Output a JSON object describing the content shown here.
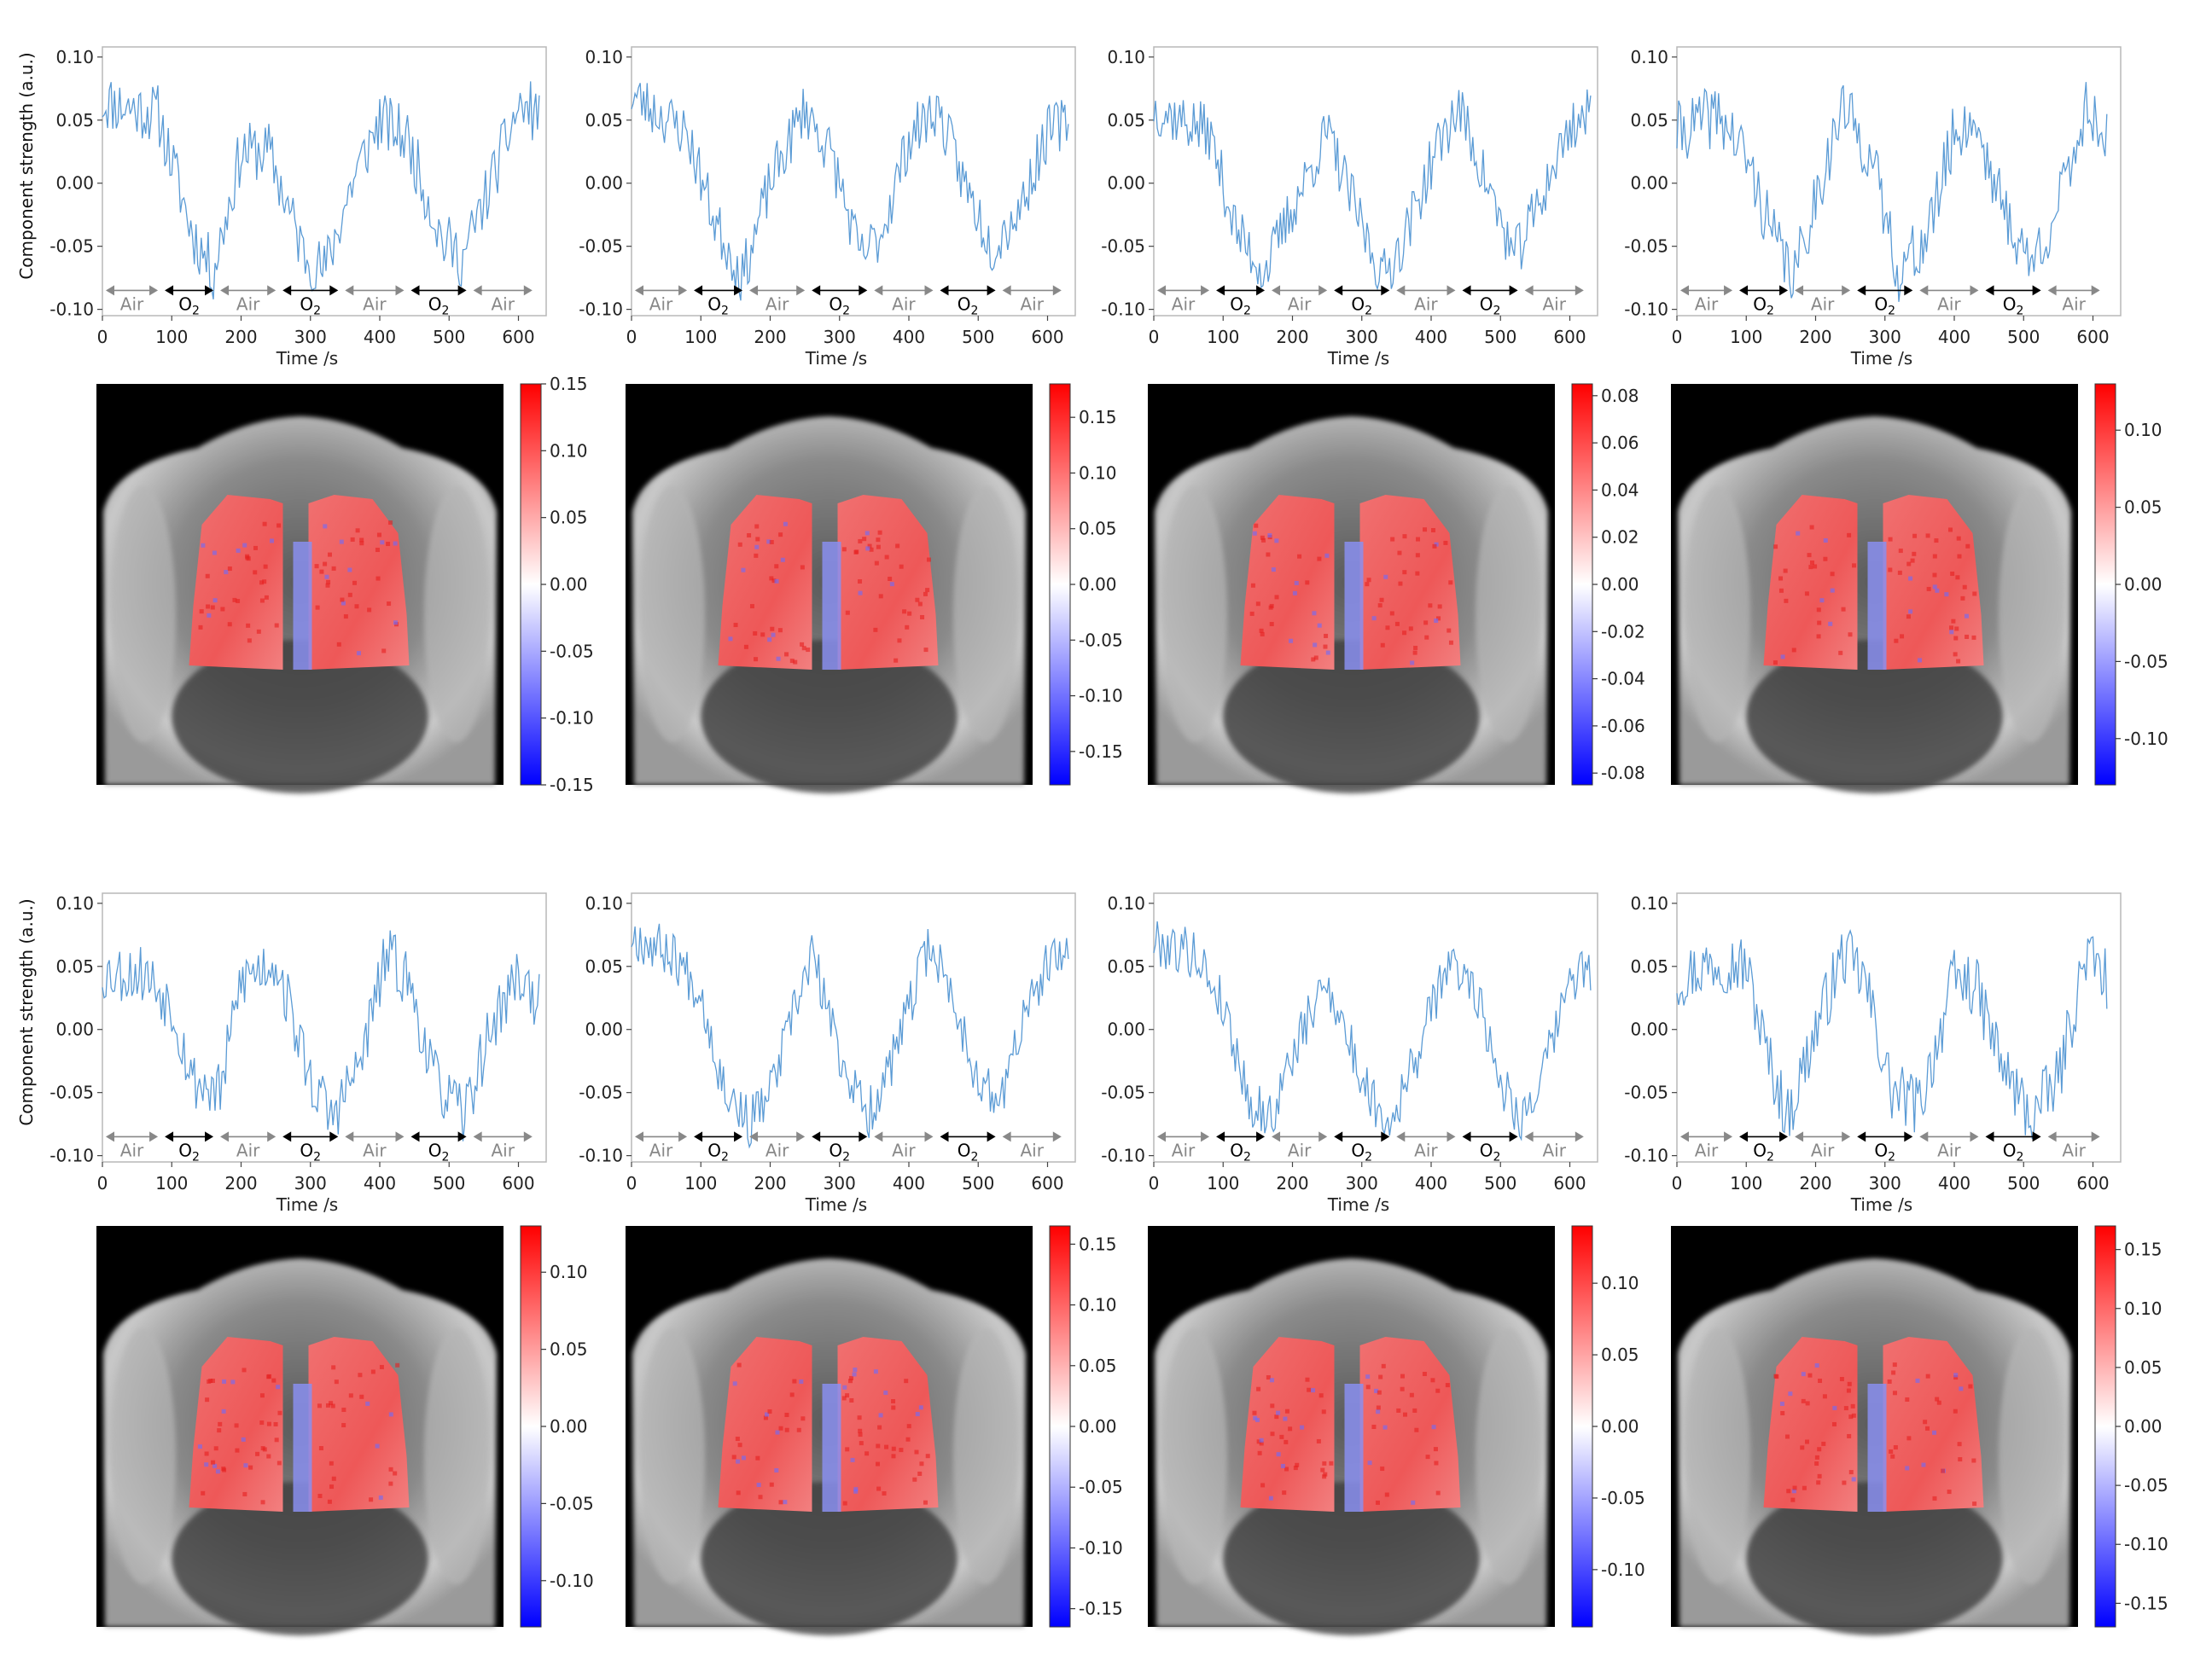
{
  "y_axis_label": "Component strength (a.u.)",
  "x_axis_label": "Time /s",
  "protocol_labels": [
    "Air",
    "O2",
    "Air",
    "O2",
    "Air",
    "O2",
    "Air"
  ],
  "x_ticks": [
    0,
    100,
    200,
    300,
    400,
    500,
    600
  ],
  "colors": {
    "trace": "#5b9bd5",
    "positive": "#ff0000",
    "negative": "#0000ff"
  },
  "chart_data": [
    {
      "type": "line",
      "panel": "row1-col1",
      "seed": 11,
      "ylim": [
        -0.1,
        0.1
      ],
      "yticks": [
        0.1,
        0.05,
        0.0,
        -0.05,
        -0.1
      ],
      "xlim": [
        0,
        630
      ],
      "noise": 0.024,
      "anchors": [
        [
          0,
          0.065
        ],
        [
          80,
          0.055
        ],
        [
          130,
          -0.04
        ],
        [
          160,
          -0.07
        ],
        [
          200,
          0.025
        ],
        [
          240,
          0.025
        ],
        [
          290,
          -0.055
        ],
        [
          320,
          -0.07
        ],
        [
          360,
          0.0
        ],
        [
          400,
          0.05
        ],
        [
          440,
          0.035
        ],
        [
          490,
          -0.045
        ],
        [
          520,
          -0.06
        ],
        [
          560,
          0.0
        ],
        [
          600,
          0.06
        ],
        [
          630,
          0.055
        ]
      ],
      "colorbar": {
        "range": [
          -0.15,
          0.15
        ],
        "ticks": [
          0.15,
          0.1,
          0.05,
          0.0,
          -0.05,
          -0.1,
          -0.15
        ]
      }
    },
    {
      "type": "line",
      "panel": "row1-col2",
      "seed": 23,
      "ylim": [
        -0.1,
        0.1
      ],
      "yticks": [
        0.1,
        0.05,
        0.0,
        -0.05,
        -0.1
      ],
      "xlim": [
        0,
        630
      ],
      "noise": 0.022,
      "anchors": [
        [
          0,
          0.07
        ],
        [
          80,
          0.04
        ],
        [
          120,
          -0.03
        ],
        [
          160,
          -0.075
        ],
        [
          200,
          0.0
        ],
        [
          250,
          0.06
        ],
        [
          290,
          0.02
        ],
        [
          330,
          -0.06
        ],
        [
          360,
          -0.04
        ],
        [
          400,
          0.035
        ],
        [
          440,
          0.06
        ],
        [
          480,
          0.0
        ],
        [
          520,
          -0.05
        ],
        [
          560,
          -0.02
        ],
        [
          600,
          0.04
        ],
        [
          630,
          0.05
        ]
      ],
      "colorbar": {
        "range": [
          -0.18,
          0.18
        ],
        "ticks": [
          0.15,
          0.1,
          0.05,
          0.0,
          -0.05,
          -0.1,
          -0.15
        ]
      }
    },
    {
      "type": "line",
      "panel": "row1-col3",
      "seed": 37,
      "ylim": [
        -0.1,
        0.1
      ],
      "yticks": [
        0.1,
        0.05,
        0.0,
        -0.05,
        -0.1
      ],
      "xlim": [
        0,
        630
      ],
      "noise": 0.022,
      "anchors": [
        [
          0,
          0.06
        ],
        [
          80,
          0.04
        ],
        [
          120,
          -0.04
        ],
        [
          160,
          -0.07
        ],
        [
          200,
          -0.02
        ],
        [
          250,
          0.04
        ],
        [
          290,
          -0.02
        ],
        [
          330,
          -0.075
        ],
        [
          360,
          -0.045
        ],
        [
          410,
          0.03
        ],
        [
          440,
          0.06
        ],
        [
          480,
          0.0
        ],
        [
          520,
          -0.06
        ],
        [
          560,
          -0.01
        ],
        [
          600,
          0.045
        ],
        [
          630,
          0.055
        ]
      ],
      "colorbar": {
        "range": [
          -0.085,
          0.085
        ],
        "ticks": [
          0.08,
          0.06,
          0.04,
          0.02,
          0.0,
          -0.02,
          -0.04,
          -0.06,
          -0.08
        ]
      }
    },
    {
      "type": "line",
      "panel": "row1-col4",
      "seed": 41,
      "ylim": [
        -0.1,
        0.1
      ],
      "yticks": [
        0.1,
        0.05,
        0.0,
        -0.05,
        -0.1
      ],
      "xlim": [
        0,
        620
      ],
      "noise": 0.025,
      "anchors": [
        [
          0,
          0.04
        ],
        [
          60,
          0.055
        ],
        [
          100,
          0.02
        ],
        [
          140,
          -0.045
        ],
        [
          170,
          -0.075
        ],
        [
          200,
          -0.01
        ],
        [
          240,
          0.06
        ],
        [
          280,
          0.02
        ],
        [
          320,
          -0.07
        ],
        [
          360,
          -0.045
        ],
        [
          400,
          0.04
        ],
        [
          430,
          0.05
        ],
        [
          470,
          -0.02
        ],
        [
          510,
          -0.065
        ],
        [
          550,
          -0.02
        ],
        [
          590,
          0.06
        ],
        [
          620,
          0.04
        ]
      ],
      "colorbar": {
        "range": [
          -0.13,
          0.13
        ],
        "ticks": [
          0.1,
          0.05,
          0.0,
          -0.05,
          -0.1
        ]
      }
    },
    {
      "type": "line",
      "panel": "row2-col1",
      "seed": 53,
      "ylim": [
        -0.1,
        0.1
      ],
      "yticks": [
        0.1,
        0.05,
        0.0,
        -0.05,
        -0.1
      ],
      "xlim": [
        0,
        630
      ],
      "noise": 0.024,
      "anchors": [
        [
          0,
          0.045
        ],
        [
          60,
          0.045
        ],
        [
          100,
          0.02
        ],
        [
          130,
          -0.04
        ],
        [
          170,
          -0.05
        ],
        [
          200,
          0.04
        ],
        [
          250,
          0.055
        ],
        [
          300,
          -0.04
        ],
        [
          330,
          -0.07
        ],
        [
          370,
          -0.03
        ],
        [
          410,
          0.06
        ],
        [
          440,
          0.04
        ],
        [
          480,
          -0.04
        ],
        [
          520,
          -0.07
        ],
        [
          560,
          0.0
        ],
        [
          600,
          0.045
        ],
        [
          630,
          0.02
        ]
      ],
      "colorbar": {
        "range": [
          -0.13,
          0.13
        ],
        "ticks": [
          0.1,
          0.05,
          0.0,
          -0.05,
          -0.1
        ]
      }
    },
    {
      "type": "line",
      "panel": "row2-col2",
      "seed": 67,
      "ylim": [
        -0.1,
        0.1
      ],
      "yticks": [
        0.1,
        0.05,
        0.0,
        -0.05,
        -0.1
      ],
      "xlim": [
        0,
        630
      ],
      "noise": 0.02,
      "anchors": [
        [
          0,
          0.075
        ],
        [
          60,
          0.06
        ],
        [
          100,
          0.03
        ],
        [
          130,
          -0.04
        ],
        [
          170,
          -0.075
        ],
        [
          200,
          -0.05
        ],
        [
          260,
          0.06
        ],
        [
          300,
          -0.02
        ],
        [
          340,
          -0.07
        ],
        [
          380,
          -0.02
        ],
        [
          430,
          0.07
        ],
        [
          460,
          0.03
        ],
        [
          500,
          -0.04
        ],
        [
          530,
          -0.06
        ],
        [
          560,
          0.0
        ],
        [
          600,
          0.05
        ],
        [
          630,
          0.06
        ]
      ],
      "colorbar": {
        "range": [
          -0.165,
          0.165
        ],
        "ticks": [
          0.15,
          0.1,
          0.05,
          0.0,
          -0.05,
          -0.1,
          -0.15
        ]
      }
    },
    {
      "type": "line",
      "panel": "row2-col3",
      "seed": 79,
      "ylim": [
        -0.1,
        0.1
      ],
      "yticks": [
        0.1,
        0.05,
        0.0,
        -0.05,
        -0.1
      ],
      "xlim": [
        0,
        630
      ],
      "noise": 0.02,
      "anchors": [
        [
          0,
          0.07
        ],
        [
          60,
          0.06
        ],
        [
          100,
          0.02
        ],
        [
          140,
          -0.06
        ],
        [
          170,
          -0.07
        ],
        [
          200,
          -0.02
        ],
        [
          250,
          0.04
        ],
        [
          300,
          -0.04
        ],
        [
          340,
          -0.075
        ],
        [
          380,
          -0.02
        ],
        [
          420,
          0.05
        ],
        [
          460,
          0.04
        ],
        [
          500,
          -0.04
        ],
        [
          530,
          -0.07
        ],
        [
          560,
          -0.04
        ],
        [
          600,
          0.04
        ],
        [
          630,
          0.05
        ]
      ],
      "colorbar": {
        "range": [
          -0.14,
          0.14
        ],
        "ticks": [
          0.1,
          0.05,
          0.0,
          -0.05,
          -0.1
        ]
      }
    },
    {
      "type": "line",
      "panel": "row2-col4",
      "seed": 97,
      "ylim": [
        -0.1,
        0.1
      ],
      "yticks": [
        0.1,
        0.05,
        0.0,
        -0.05,
        -0.1
      ],
      "xlim": [
        0,
        620
      ],
      "noise": 0.025,
      "anchors": [
        [
          0,
          0.04
        ],
        [
          60,
          0.055
        ],
        [
          100,
          0.05
        ],
        [
          130,
          -0.02
        ],
        [
          160,
          -0.07
        ],
        [
          200,
          0.0
        ],
        [
          240,
          0.06
        ],
        [
          270,
          0.04
        ],
        [
          310,
          -0.05
        ],
        [
          350,
          -0.06
        ],
        [
          400,
          0.04
        ],
        [
          430,
          0.035
        ],
        [
          470,
          -0.03
        ],
        [
          510,
          -0.07
        ],
        [
          550,
          -0.04
        ],
        [
          590,
          0.06
        ],
        [
          620,
          0.04
        ]
      ],
      "colorbar": {
        "range": [
          -0.17,
          0.17
        ],
        "ticks": [
          0.15,
          0.1,
          0.05,
          0.0,
          -0.05,
          -0.1,
          -0.15
        ]
      }
    }
  ]
}
